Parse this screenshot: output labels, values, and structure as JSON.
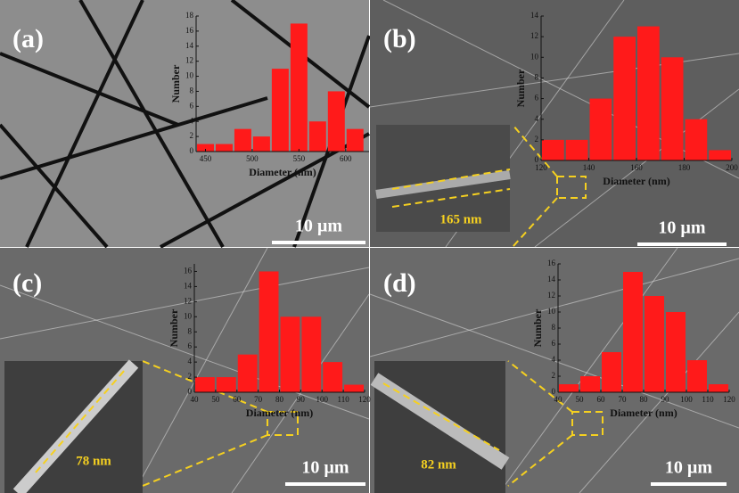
{
  "chart_data": [
    {
      "type": "histogram",
      "panel": "(a)",
      "x_label": "Diameter (nm)",
      "y_label": "Number",
      "scale_bar": "10 µm",
      "bins": [
        440,
        460,
        480,
        500,
        520,
        540,
        560,
        580,
        600,
        620
      ],
      "values": [
        1,
        1,
        3,
        2,
        11,
        17,
        4,
        8,
        3
      ],
      "color": "#ff1a1a",
      "xlim": [
        440,
        625
      ],
      "xticks": [
        450,
        500,
        550,
        600
      ],
      "ylim": [
        0,
        18
      ],
      "yticks": [
        0,
        2,
        4,
        6,
        8,
        10,
        12,
        14,
        16,
        18
      ]
    },
    {
      "type": "histogram",
      "panel": "(b)",
      "x_label": "Diameter (nm)",
      "y_label": "Number",
      "scale_bar": "10 µm",
      "inset_label": "165 nm",
      "bins": [
        120,
        130,
        140,
        150,
        160,
        170,
        180,
        190,
        200
      ],
      "values": [
        2,
        2,
        6,
        12,
        13,
        10,
        4,
        1
      ],
      "color": "#ff1a1a",
      "xlim": [
        120,
        200
      ],
      "xticks": [
        120,
        140,
        160,
        180,
        200
      ],
      "ylim": [
        0,
        14
      ],
      "yticks": [
        0,
        2,
        4,
        6,
        8,
        10,
        12,
        14
      ]
    },
    {
      "type": "histogram",
      "panel": "(c)",
      "x_label": "Diameter (nm)",
      "y_label": "Number",
      "scale_bar": "10 µm",
      "inset_label": "78 nm",
      "bins": [
        40,
        50,
        60,
        70,
        80,
        90,
        100,
        110,
        120
      ],
      "values": [
        2,
        2,
        5,
        16,
        10,
        10,
        4,
        1
      ],
      "color": "#ff1a1a",
      "xlim": [
        40,
        120
      ],
      "xticks": [
        40,
        50,
        60,
        70,
        80,
        90,
        100,
        110,
        120
      ],
      "ylim": [
        0,
        17
      ],
      "yticks": [
        0,
        2,
        4,
        6,
        8,
        10,
        12,
        14,
        16
      ]
    },
    {
      "type": "histogram",
      "panel": "(d)",
      "x_label": "Diameter (nm)",
      "y_label": "Number",
      "scale_bar": "10 µm",
      "inset_label": "82 nm",
      "bins": [
        40,
        50,
        60,
        70,
        80,
        90,
        100,
        110,
        120
      ],
      "values": [
        1,
        2,
        5,
        15,
        12,
        10,
        4,
        1
      ],
      "color": "#ff1a1a",
      "xlim": [
        40,
        120
      ],
      "xticks": [
        40,
        50,
        60,
        70,
        80,
        90,
        100,
        110,
        120
      ],
      "ylim": [
        0,
        16
      ],
      "yticks": [
        0,
        2,
        4,
        6,
        8,
        10,
        12,
        14,
        16
      ]
    }
  ]
}
